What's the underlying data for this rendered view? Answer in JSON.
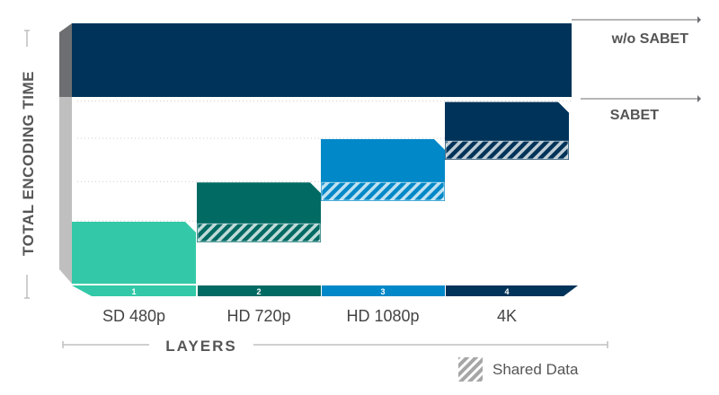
{
  "colors": {
    "sd": "#33c9a8",
    "hd720": "#006a63",
    "hd1080": "#0088c8",
    "k4": "#003359",
    "navy": "#003359",
    "axis_gray": "#bfbfbf",
    "axis_dark": "#6d6e71",
    "text": "#555555",
    "legend_text": "#555555"
  },
  "chart_data": {
    "type": "bar",
    "xlabel": "LAYERS",
    "ylabel": "TOTAL ENCODING TIME",
    "grid": true,
    "categories": [
      {
        "label": "SD 480p",
        "number": "1",
        "color": "#33c9a8"
      },
      {
        "label": "HD 720p",
        "number": "2",
        "color": "#006a63"
      },
      {
        "label": "HD 1080p",
        "number": "3",
        "color": "#0088c8"
      },
      {
        "label": "4K",
        "number": "4",
        "color": "#003359"
      }
    ],
    "ylim": [
      0,
      10
    ],
    "layer_segments": [
      {
        "base": 0,
        "top": 3.0,
        "shared": 0
      },
      {
        "base": 2.0,
        "top": 4.9,
        "shared": 0.9
      },
      {
        "base": 4.0,
        "top": 7.0,
        "shared": 0.9
      },
      {
        "base": 6.0,
        "top": 8.8,
        "shared": 0.9
      }
    ],
    "without_sabet": {
      "label": "w/o SABET",
      "value": 12.4
    },
    "sabet": {
      "label": "SABET",
      "value": 8.8
    },
    "legend": {
      "label": "Shared Data",
      "position": "bottom-right"
    }
  }
}
